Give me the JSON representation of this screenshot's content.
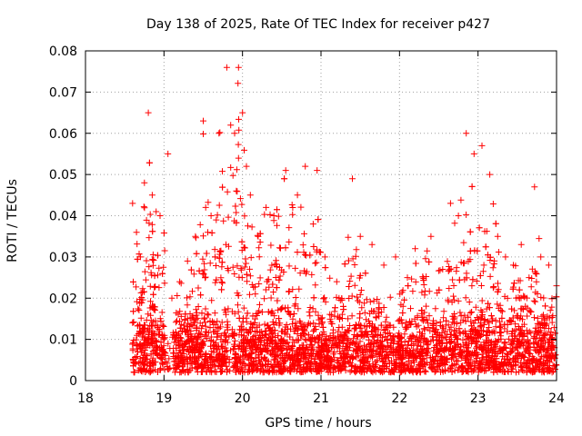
{
  "chart_data": {
    "type": "scatter",
    "title": "Day 138 of 2025, Rate Of TEC Index for receiver p427",
    "xlabel": "GPS time / hours",
    "ylabel": "ROTI / TECUs",
    "xlim": [
      18,
      24
    ],
    "ylim": [
      0,
      0.08
    ],
    "xticks": [
      "18",
      "19",
      "20",
      "21",
      "22",
      "23",
      "24"
    ],
    "yticks": [
      "0",
      "0.01",
      "0.02",
      "0.03",
      "0.04",
      "0.05",
      "0.06",
      "0.07",
      "0.08"
    ],
    "grid": true,
    "marker": "plus",
    "color": "#ff0000",
    "data_start_hour": 18.6,
    "data_end_hour": 24.0,
    "envelope": [
      {
        "x": 18.6,
        "y": 0.043
      },
      {
        "x": 18.65,
        "y": 0.036
      },
      {
        "x": 18.7,
        "y": 0.03
      },
      {
        "x": 18.75,
        "y": 0.048
      },
      {
        "x": 18.8,
        "y": 0.065
      },
      {
        "x": 18.85,
        "y": 0.045
      },
      {
        "x": 18.9,
        "y": 0.041
      },
      {
        "x": 18.95,
        "y": 0.04
      },
      {
        "x": 19.05,
        "y": 0.055
      },
      {
        "x": 19.1,
        "y": 0.02
      },
      {
        "x": 19.2,
        "y": 0.024
      },
      {
        "x": 19.3,
        "y": 0.029
      },
      {
        "x": 19.4,
        "y": 0.035
      },
      {
        "x": 19.5,
        "y": 0.063
      },
      {
        "x": 19.6,
        "y": 0.04
      },
      {
        "x": 19.7,
        "y": 0.06
      },
      {
        "x": 19.8,
        "y": 0.076
      },
      {
        "x": 19.85,
        "y": 0.062
      },
      {
        "x": 19.9,
        "y": 0.06
      },
      {
        "x": 19.95,
        "y": 0.076
      },
      {
        "x": 20.0,
        "y": 0.065
      },
      {
        "x": 20.05,
        "y": 0.052
      },
      {
        "x": 20.1,
        "y": 0.045
      },
      {
        "x": 20.2,
        "y": 0.035
      },
      {
        "x": 20.3,
        "y": 0.042
      },
      {
        "x": 20.4,
        "y": 0.04
      },
      {
        "x": 20.55,
        "y": 0.051
      },
      {
        "x": 20.7,
        "y": 0.045
      },
      {
        "x": 20.8,
        "y": 0.052
      },
      {
        "x": 20.9,
        "y": 0.038
      },
      {
        "x": 20.95,
        "y": 0.051
      },
      {
        "x": 21.05,
        "y": 0.03
      },
      {
        "x": 21.2,
        "y": 0.024
      },
      {
        "x": 21.4,
        "y": 0.049
      },
      {
        "x": 21.5,
        "y": 0.035
      },
      {
        "x": 21.65,
        "y": 0.033
      },
      {
        "x": 21.8,
        "y": 0.028
      },
      {
        "x": 21.95,
        "y": 0.03
      },
      {
        "x": 22.1,
        "y": 0.025
      },
      {
        "x": 22.2,
        "y": 0.032
      },
      {
        "x": 22.4,
        "y": 0.035
      },
      {
        "x": 22.55,
        "y": 0.027
      },
      {
        "x": 22.65,
        "y": 0.043
      },
      {
        "x": 22.75,
        "y": 0.04
      },
      {
        "x": 22.85,
        "y": 0.06
      },
      {
        "x": 22.95,
        "y": 0.055
      },
      {
        "x": 23.05,
        "y": 0.057
      },
      {
        "x": 23.15,
        "y": 0.05
      },
      {
        "x": 23.25,
        "y": 0.035
      },
      {
        "x": 23.35,
        "y": 0.03
      },
      {
        "x": 23.45,
        "y": 0.028
      },
      {
        "x": 23.55,
        "y": 0.033
      },
      {
        "x": 23.65,
        "y": 0.025
      },
      {
        "x": 23.72,
        "y": 0.047
      },
      {
        "x": 23.8,
        "y": 0.03
      },
      {
        "x": 23.9,
        "y": 0.028
      },
      {
        "x": 24.0,
        "y": 0.023
      }
    ],
    "baseline": {
      "min": 0.002,
      "typical_max": 0.018
    }
  }
}
